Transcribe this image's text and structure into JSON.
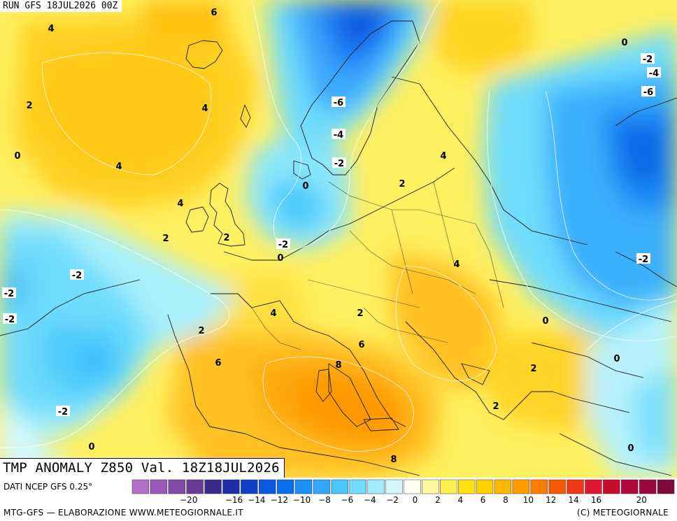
{
  "map": {
    "run_label": "RUN GFS 18JUL2026 00Z",
    "title": "TMP ANOMALY Z850 Val. 18Z18JUL2026",
    "source": "DATI NCEP GFS 0.25°",
    "credit_left": "MTG-GFS — ELABORAZIONE WWW.METEOGIORNALE.IT",
    "credit_right": "(C) METEOGIORNALE"
  },
  "legend": {
    "colors": [
      "#b070c8",
      "#9a58b8",
      "#844aa8",
      "#6a3c98",
      "#3a2a90",
      "#1e2ea8",
      "#1040c8",
      "#0a58e0",
      "#0a70f0",
      "#1a90f8",
      "#30a8fc",
      "#4cc4fc",
      "#70dcfc",
      "#a0ecfc",
      "#d4f8fc",
      "#fffff0",
      "#fff8a0",
      "#fff050",
      "#ffe010",
      "#ffd000",
      "#ffb800",
      "#ff9c00",
      "#ff7c00",
      "#f85800",
      "#f03818",
      "#e01830",
      "#c80c30",
      "#b0083c",
      "#98083c",
      "#800a40"
    ],
    "ticks": [
      "-20",
      "-18",
      "-16",
      "-14",
      "-12",
      "-10",
      "-8",
      "-6",
      "-4",
      "-2",
      "0",
      "2",
      "4",
      "6",
      "8",
      "10",
      "12",
      "14",
      "16",
      "18",
      "20"
    ],
    "labeled_ticks": [
      "-20",
      "-16",
      "-14",
      "-12",
      "-10",
      "-8",
      "-6",
      "-4",
      "-2",
      "0",
      "2",
      "4",
      "6",
      "8",
      "10",
      "12",
      "14",
      "16",
      "20"
    ]
  },
  "contour_labels": [
    {
      "text": "6",
      "boxed": false
    },
    {
      "text": "4",
      "boxed": false
    },
    {
      "text": "0",
      "boxed": false
    },
    {
      "text": "-2",
      "boxed": true
    },
    {
      "text": "-4",
      "boxed": true
    },
    {
      "text": "-6",
      "boxed": true
    },
    {
      "text": "2",
      "boxed": false
    },
    {
      "text": "4",
      "boxed": false
    },
    {
      "text": "-6",
      "boxed": true
    },
    {
      "text": "-4",
      "boxed": true
    },
    {
      "text": "-2",
      "boxed": true
    },
    {
      "text": "0",
      "boxed": false
    },
    {
      "text": "4",
      "boxed": false
    },
    {
      "text": "2",
      "boxed": false
    },
    {
      "text": "0",
      "boxed": false
    },
    {
      "text": "4",
      "boxed": false
    },
    {
      "text": "4",
      "boxed": false
    },
    {
      "text": "2",
      "boxed": false
    },
    {
      "text": "2",
      "boxed": false
    },
    {
      "text": "-2",
      "boxed": true
    },
    {
      "text": "0",
      "boxed": false
    },
    {
      "text": "-2",
      "boxed": true
    },
    {
      "text": "4",
      "boxed": false
    },
    {
      "text": "-2",
      "boxed": true
    },
    {
      "text": "-2",
      "boxed": true
    },
    {
      "text": "-2",
      "boxed": true
    },
    {
      "text": "4",
      "boxed": false
    },
    {
      "text": "2",
      "boxed": false
    },
    {
      "text": "0",
      "boxed": false
    },
    {
      "text": "2",
      "boxed": false
    },
    {
      "text": "6",
      "boxed": false
    },
    {
      "text": "6",
      "boxed": false
    },
    {
      "text": "8",
      "boxed": false
    },
    {
      "text": "2",
      "boxed": false
    },
    {
      "text": "0",
      "boxed": false
    },
    {
      "text": "-2",
      "boxed": true
    },
    {
      "text": "2",
      "boxed": false
    },
    {
      "text": "0",
      "boxed": false
    },
    {
      "text": "0",
      "boxed": false
    },
    {
      "text": "8",
      "boxed": false
    },
    {
      "text": "4",
      "boxed": false
    }
  ]
}
